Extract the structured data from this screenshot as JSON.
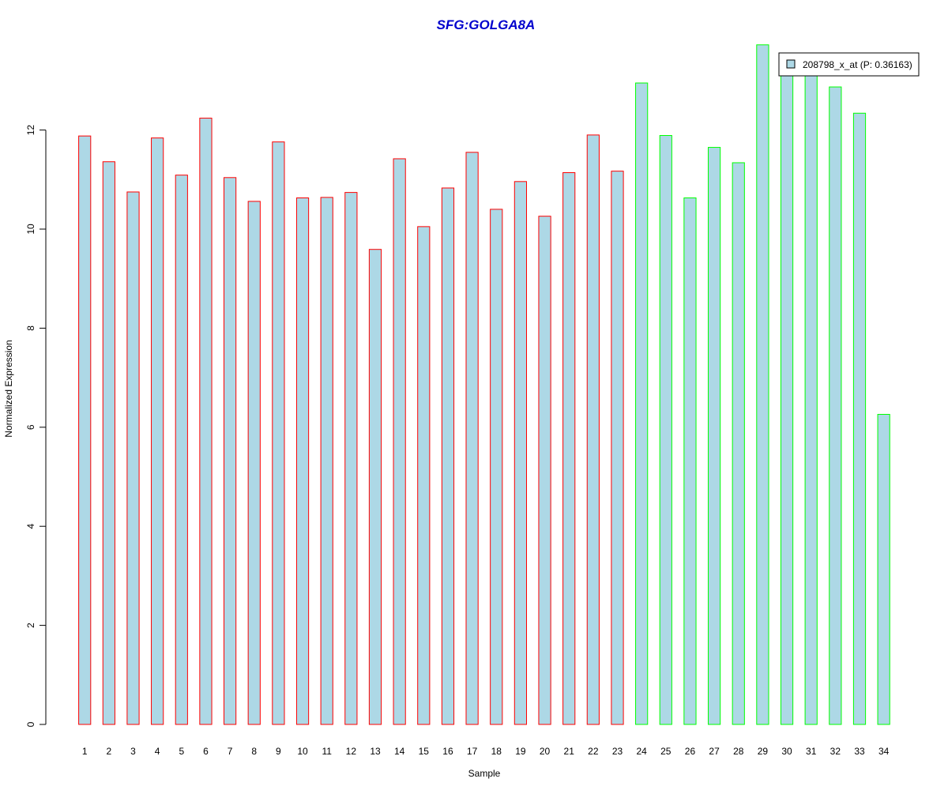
{
  "chart_data": {
    "type": "bar",
    "title": "SFG:GOLGA8A",
    "xlabel": "Sample",
    "ylabel": "Normalized Expression",
    "categories": [
      "1",
      "2",
      "3",
      "4",
      "5",
      "6",
      "7",
      "8",
      "9",
      "10",
      "11",
      "12",
      "13",
      "14",
      "15",
      "16",
      "17",
      "18",
      "19",
      "20",
      "21",
      "22",
      "23",
      "24",
      "25",
      "26",
      "27",
      "28",
      "29",
      "30",
      "31",
      "32",
      "33",
      "34"
    ],
    "series": [
      {
        "name": "208798_x_at (P: 0.36163)",
        "values": [
          11.88,
          11.36,
          10.75,
          11.84,
          11.09,
          12.24,
          11.04,
          10.56,
          11.76,
          10.63,
          10.64,
          10.74,
          9.59,
          11.42,
          10.05,
          10.83,
          11.55,
          10.4,
          10.96,
          10.26,
          11.14,
          11.9,
          11.17,
          12.95,
          11.89,
          10.63,
          11.65,
          11.34,
          13.72,
          13.45,
          13.4,
          12.87,
          12.34,
          6.26
        ]
      }
    ],
    "group_assignments": [
      "red",
      "red",
      "red",
      "red",
      "red",
      "red",
      "red",
      "red",
      "red",
      "red",
      "red",
      "red",
      "red",
      "red",
      "red",
      "red",
      "red",
      "red",
      "red",
      "red",
      "red",
      "red",
      "red",
      "green",
      "green",
      "green",
      "green",
      "green",
      "green",
      "green",
      "green",
      "green",
      "green",
      "green"
    ],
    "ylim": [
      0,
      13.72
    ],
    "yticks": [
      0,
      2,
      4,
      6,
      8,
      10,
      12
    ],
    "grid": false,
    "legend_position": "top-right",
    "colors": {
      "bar_fill": "#add8e6",
      "group_red": "#ff0000",
      "group_green": "#00ff00",
      "title": "#0000cd",
      "axis": "#000000"
    }
  }
}
